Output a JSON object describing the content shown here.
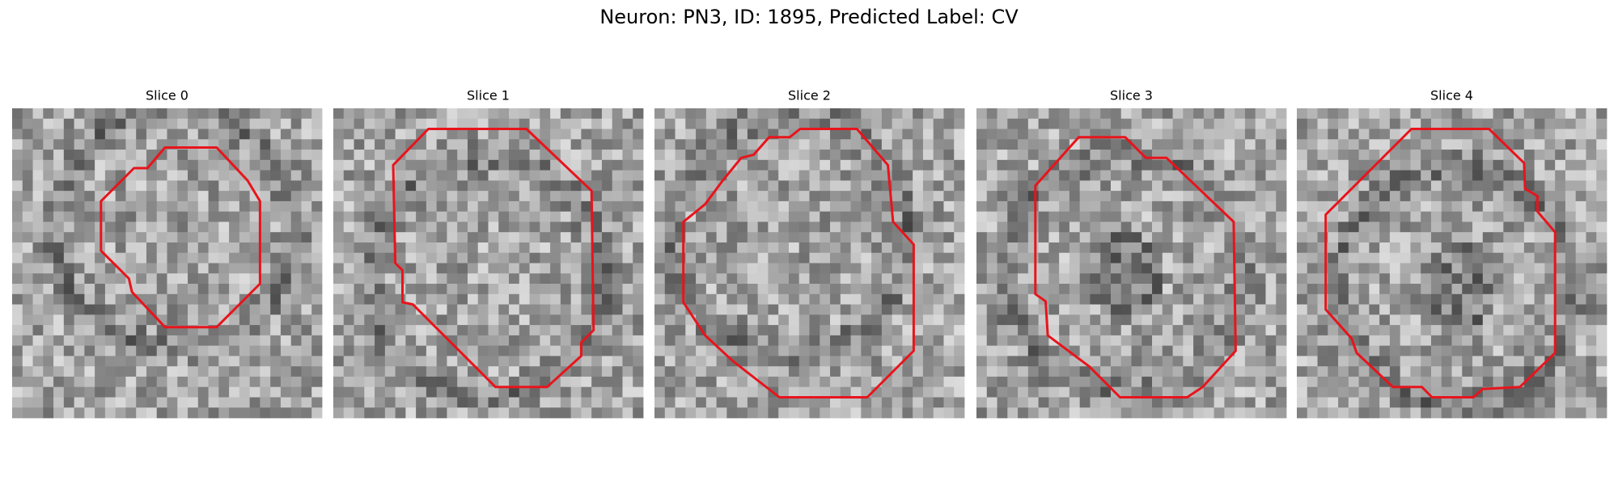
{
  "title": "Neuron: PN3, ID: 1895, Predicted Label: CV",
  "panels": [
    {
      "title": "Slice 0"
    },
    {
      "title": "Slice 1"
    },
    {
      "title": "Slice 2"
    },
    {
      "title": "Slice 3"
    },
    {
      "title": "Slice 4"
    }
  ]
}
